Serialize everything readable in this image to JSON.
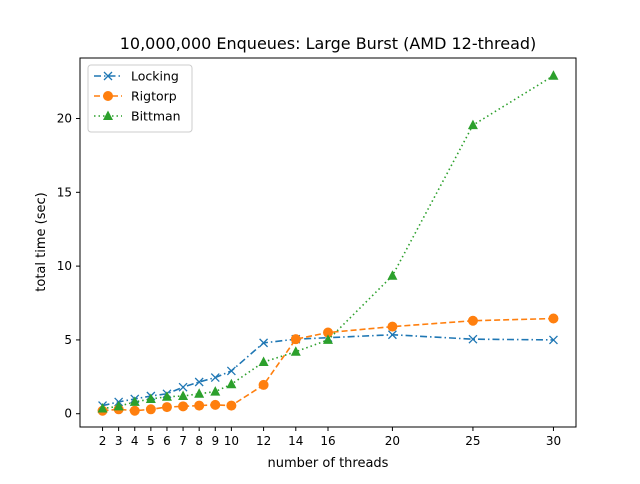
{
  "chart_data": {
    "type": "line",
    "title": "10,000,000 Enqueues: Large Burst (AMD 12-thread)",
    "xlabel": "number of threads",
    "ylabel": "total time (sec)",
    "x": [
      2,
      3,
      4,
      5,
      6,
      7,
      8,
      9,
      10,
      12,
      14,
      16,
      20,
      25,
      30
    ],
    "xticks": [
      "2",
      "3",
      "4",
      "5",
      "6",
      "7",
      "8",
      "9",
      "10",
      "12",
      "14",
      "16",
      "20",
      "25",
      "30"
    ],
    "yticks": [
      "0",
      "5",
      "10",
      "15",
      "20"
    ],
    "xlim": [
      0.6,
      31.4
    ],
    "ylim": [
      -0.9,
      24.1
    ],
    "legend_position": "top-left",
    "grid": false,
    "series": [
      {
        "name": "Locking",
        "color": "#1f77b4",
        "marker": "x",
        "dash": "dashdot",
        "values": [
          0.55,
          0.8,
          1.0,
          1.2,
          1.35,
          1.8,
          2.15,
          2.45,
          2.9,
          4.8,
          5.05,
          5.15,
          5.35,
          5.05,
          5.0
        ]
      },
      {
        "name": "Rigtorp",
        "color": "#ff7f0e",
        "marker": "circle",
        "dash": "dashed",
        "values": [
          0.2,
          0.3,
          0.2,
          0.3,
          0.45,
          0.5,
          0.55,
          0.6,
          0.55,
          1.95,
          5.05,
          5.5,
          5.9,
          6.3,
          6.45
        ]
      },
      {
        "name": "Bittman",
        "color": "#2ca02c",
        "marker": "triangle",
        "dash": "dotted",
        "values": [
          0.35,
          0.5,
          0.8,
          1.0,
          1.15,
          1.2,
          1.35,
          1.5,
          2.0,
          3.5,
          4.2,
          5.0,
          9.35,
          19.55,
          22.9
        ]
      }
    ]
  }
}
